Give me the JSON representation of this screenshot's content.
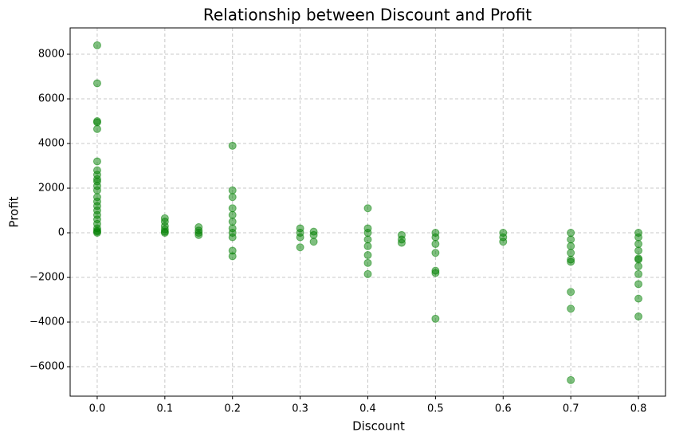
{
  "chart_data": {
    "type": "scatter",
    "title": "Relationship between Discount and Profit",
    "x_label": "Discount",
    "y_label": "Profit",
    "color": "#008000",
    "alpha": 0.5,
    "grid": true,
    "xlim": [
      -0.04,
      0.84
    ],
    "ylim": [
      -7320,
      9180
    ],
    "xticks": [
      {
        "value": 0,
        "label": "0.0"
      },
      0.1,
      0.2,
      0.3,
      0.4,
      0.5,
      0.6,
      0.7,
      0.8
    ],
    "yticks": [
      {
        "value": -6000,
        "label": "−6000"
      },
      {
        "value": -4000,
        "label": "−4000"
      },
      {
        "value": -2000,
        "label": "−2000"
      },
      0,
      2000,
      4000,
      6000,
      8000
    ],
    "x": [
      0,
      0,
      0,
      0,
      0,
      0,
      0,
      0,
      0,
      0,
      0,
      0,
      0,
      0,
      0,
      0,
      0,
      0,
      0,
      0,
      0,
      0,
      0,
      0.1,
      0.1,
      0.1,
      0.1,
      0.1,
      0.1,
      0.15,
      0.15,
      0.15,
      0.15,
      0.2,
      0.2,
      0.2,
      0.2,
      0.2,
      0.2,
      0.2,
      0.2,
      0.2,
      0.2,
      0.2,
      0.3,
      0.3,
      0.3,
      0.3,
      0.32,
      0.32,
      0.32,
      0.4,
      0.4,
      0.4,
      0.4,
      0.4,
      0.4,
      0.4,
      0.4,
      0.45,
      0.45,
      0.45,
      0.5,
      0.5,
      0.5,
      0.5,
      0.5,
      0.5,
      0.5,
      0.6,
      0.6,
      0.6,
      0.7,
      0.7,
      0.7,
      0.7,
      0.7,
      0.7,
      0.7,
      0.7,
      0.7,
      0.8,
      0.8,
      0.8,
      0.8,
      0.8,
      0.8,
      0.8,
      0.8,
      0.8,
      0.8,
      0.8
    ],
    "y": [
      8400,
      6700,
      5000,
      4950,
      4650,
      3200,
      2800,
      2600,
      2400,
      2300,
      2100,
      1900,
      1600,
      1400,
      1200,
      1000,
      800,
      600,
      400,
      200,
      100,
      0,
      50,
      650,
      500,
      300,
      150,
      50,
      0,
      250,
      100,
      0,
      -100,
      3900,
      1900,
      1600,
      1100,
      800,
      500,
      200,
      0,
      -200,
      -800,
      -1050,
      200,
      0,
      -200,
      -650,
      50,
      -100,
      -400,
      1100,
      200,
      0,
      -300,
      -600,
      -1000,
      -1350,
      -1850,
      -100,
      -300,
      -450,
      0,
      -200,
      -500,
      -900,
      -1700,
      -1800,
      -3850,
      0,
      -200,
      -400,
      0,
      -300,
      -600,
      -900,
      -1200,
      -1300,
      -2650,
      -3400,
      -6600,
      0,
      -200,
      -500,
      -800,
      -1150,
      -1200,
      -1500,
      -1850,
      -2300,
      -2950,
      -3750
    ]
  }
}
